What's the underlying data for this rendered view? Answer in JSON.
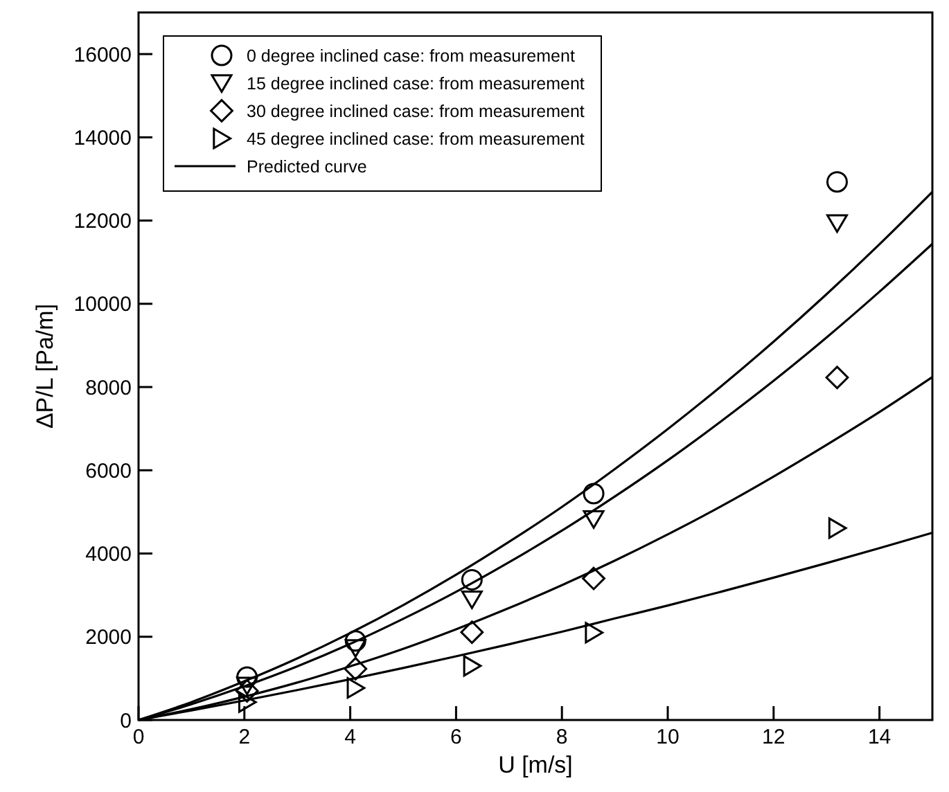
{
  "chart_data": {
    "type": "scatter",
    "xlabel": "U [m/s]",
    "ylabel": "ΔP/L [Pa/m]",
    "xlim": [
      0,
      15
    ],
    "xticks": [
      0,
      2,
      4,
      6,
      8,
      10,
      12,
      14
    ],
    "ylim": [
      0,
      17000
    ],
    "yticks": [
      0,
      2000,
      4000,
      6000,
      8000,
      10000,
      12000,
      14000,
      16000
    ],
    "grid": false,
    "legend": "top left",
    "series": [
      {
        "name": "0 degree inclined case: from measurement",
        "color": "#000000",
        "marker": "circle",
        "x": [
          2.05,
          4.1,
          6.3,
          8.6,
          13.2
        ],
        "values": [
          1030,
          1900,
          3370,
          5440,
          12930
        ]
      },
      {
        "name": "15 degree inclined case: from measurement",
        "color": "#000000",
        "marker": "triangle-down",
        "x": [
          2.05,
          4.1,
          6.3,
          8.6,
          13.2
        ],
        "values": [
          830,
          1730,
          2900,
          4830,
          11940
        ]
      },
      {
        "name": "30 degree inclined case: from measurement",
        "color": "#000000",
        "marker": "diamond",
        "x": [
          2.05,
          4.1,
          6.3,
          8.6,
          13.2
        ],
        "values": [
          700,
          1230,
          2110,
          3400,
          8230
        ]
      },
      {
        "name": "45 degree inclined case: from measurement",
        "color": "#000000",
        "marker": "triangle-right",
        "x": [
          2.05,
          4.1,
          6.3,
          8.6,
          13.2
        ],
        "values": [
          430,
          770,
          1300,
          2100,
          4610
        ]
      },
      {
        "name": "Predicted curve",
        "type": "line",
        "color": "#000000",
        "marker": "none",
        "line_style": "solid",
        "x": [
          0,
          1,
          2,
          3,
          4,
          5,
          6,
          7,
          8,
          9,
          10,
          11,
          12,
          13,
          14,
          15
        ],
        "values": [
          0,
          430,
          930,
          1480,
          2090,
          2760,
          3490,
          4280,
          5120,
          6030,
          6990,
          8010,
          9090,
          10230,
          11430,
          12690
        ]
      },
      {
        "type": "line",
        "color": "#000000",
        "marker": "none",
        "line_style": "solid",
        "x": [
          0,
          1,
          2,
          3,
          4,
          5,
          6,
          7,
          8,
          9,
          10,
          11,
          12,
          13,
          14,
          15
        ],
        "values": [
          0,
          380,
          810,
          1290,
          1830,
          2430,
          3080,
          3790,
          4550,
          5370,
          6240,
          7170,
          8150,
          9190,
          10290,
          11440
        ]
      },
      {
        "type": "line",
        "color": "#000000",
        "marker": "none",
        "line_style": "solid",
        "x": [
          0,
          1,
          2,
          3,
          4,
          5,
          6,
          7,
          8,
          9,
          10,
          11,
          12,
          13,
          14,
          15
        ],
        "values": [
          0,
          260,
          560,
          900,
          1290,
          1710,
          2180,
          2690,
          3240,
          3830,
          4460,
          5130,
          5850,
          6610,
          7400,
          8240
        ]
      },
      {
        "type": "line",
        "color": "#000000",
        "marker": "none",
        "line_style": "solid",
        "x": [
          0,
          1,
          2,
          3,
          4,
          5,
          6,
          7,
          8,
          9,
          10,
          11,
          12,
          13,
          14,
          15
        ],
        "values": [
          0,
          230,
          470,
          720,
          980,
          1250,
          1530,
          1820,
          2120,
          2440,
          2750,
          3080,
          3420,
          3770,
          4130,
          4500
        ]
      }
    ]
  }
}
